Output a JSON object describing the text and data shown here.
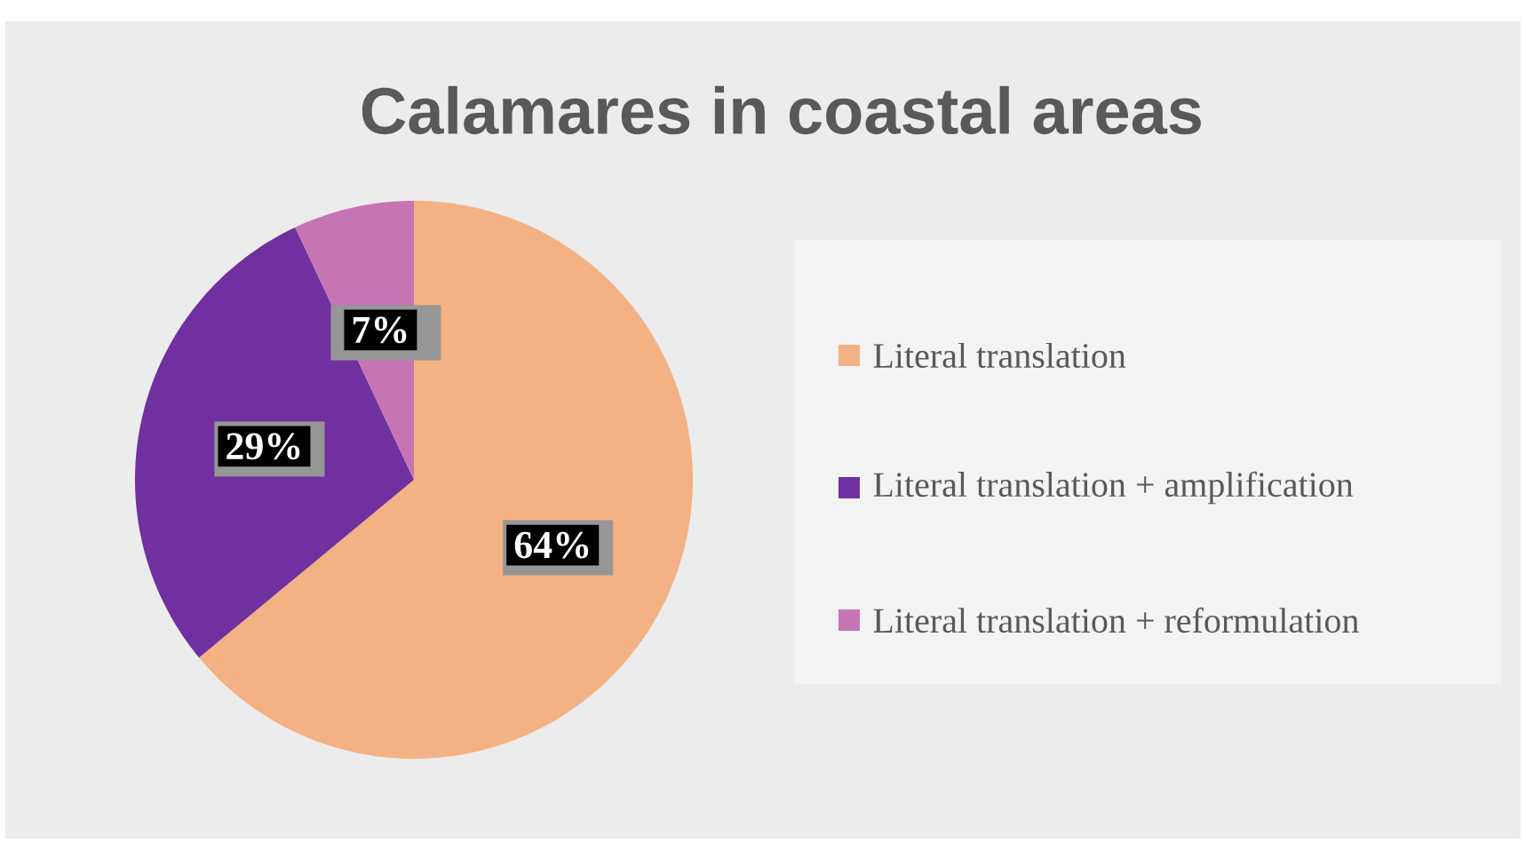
{
  "chart_data": {
    "type": "pie",
    "title": "Calamares in coastal areas",
    "categories": [
      "Literal translation",
      "Literal translation + amplification",
      "Literal translation + reformulation"
    ],
    "values": [
      64,
      29,
      7
    ],
    "colors": [
      "#f4b183",
      "#7030a0",
      "#c774b5"
    ],
    "value_labels": [
      "64%",
      "29%",
      "7%"
    ],
    "legend": "right"
  }
}
